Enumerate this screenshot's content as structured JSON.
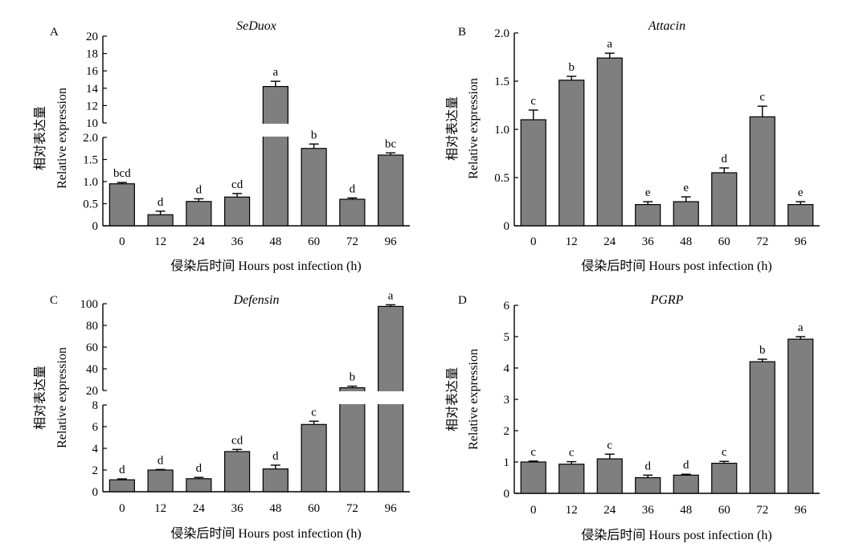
{
  "chart_data": [
    {
      "type": "bar",
      "panel": "A",
      "title": "SeDuox",
      "xlabel": "侵染后时间 Hours post infection (h)",
      "ylabel_cn": "相对表达量",
      "ylabel_en": "Relative expression",
      "categories": [
        "0",
        "12",
        "24",
        "36",
        "48",
        "60",
        "72",
        "96"
      ],
      "values": [
        0.95,
        0.25,
        0.55,
        0.65,
        14.2,
        1.75,
        0.6,
        1.6
      ],
      "errors": [
        0.03,
        0.08,
        0.06,
        0.08,
        0.6,
        0.1,
        0.03,
        0.05
      ],
      "significance": [
        "bcd",
        "d",
        "d",
        "cd",
        "a",
        "b",
        "d",
        "bc"
      ],
      "axis_break": {
        "lower_ylim": [
          0,
          2.0
        ],
        "upper_ylim": [
          10,
          20
        ],
        "lower_ticks": [
          "0",
          "0.5",
          "1.0",
          "1.5",
          "2.0"
        ],
        "upper_ticks": [
          "10",
          "12",
          "14",
          "16",
          "18",
          "20"
        ]
      }
    },
    {
      "type": "bar",
      "panel": "B",
      "title": "Attacin",
      "xlabel": "侵染后时间 Hours post infection (h)",
      "ylabel_cn": "相对表达量",
      "ylabel_en": "Relative expression",
      "categories": [
        "0",
        "12",
        "24",
        "36",
        "48",
        "60",
        "72",
        "96"
      ],
      "values": [
        1.1,
        1.51,
        1.74,
        0.22,
        0.25,
        0.55,
        1.13,
        0.22
      ],
      "errors": [
        0.1,
        0.04,
        0.05,
        0.03,
        0.05,
        0.05,
        0.11,
        0.03
      ],
      "significance": [
        "c",
        "b",
        "a",
        "e",
        "e",
        "d",
        "c",
        "e"
      ],
      "ylim": [
        0,
        2.0
      ],
      "yticks": [
        "0",
        "0.5",
        "1.0",
        "1.5",
        "2.0"
      ]
    },
    {
      "type": "bar",
      "panel": "C",
      "title": "Defensin",
      "xlabel": "侵染后时间 Hours post infection (h)",
      "ylabel_cn": "相对表达量",
      "ylabel_en": "Relative expression",
      "categories": [
        "0",
        "12",
        "24",
        "36",
        "48",
        "60",
        "72",
        "96"
      ],
      "values": [
        1.1,
        2.0,
        1.2,
        3.7,
        2.1,
        6.2,
        22.5,
        97.5
      ],
      "errors": [
        0.08,
        0.05,
        0.12,
        0.2,
        0.35,
        0.3,
        1.5,
        1.5
      ],
      "significance": [
        "d",
        "d",
        "d",
        "cd",
        "d",
        "c",
        "b",
        "a"
      ],
      "axis_break": {
        "lower_ylim": [
          0,
          8
        ],
        "upper_ylim": [
          20,
          100
        ],
        "lower_ticks": [
          "0",
          "2",
          "4",
          "6",
          "8"
        ],
        "upper_ticks": [
          "20",
          "40",
          "60",
          "80",
          "100"
        ]
      }
    },
    {
      "type": "bar",
      "panel": "D",
      "title": "PGRP",
      "xlabel": "侵染后时间 Hours post infection (h)",
      "ylabel_cn": "相对表达量",
      "ylabel_en": "Relative expression",
      "categories": [
        "0",
        "12",
        "24",
        "36",
        "48",
        "60",
        "72",
        "96"
      ],
      "values": [
        1.0,
        0.93,
        1.1,
        0.5,
        0.58,
        0.96,
        4.2,
        4.92
      ],
      "errors": [
        0.03,
        0.08,
        0.15,
        0.08,
        0.03,
        0.06,
        0.08,
        0.08
      ],
      "significance": [
        "c",
        "c",
        "c",
        "d",
        "d",
        "c",
        "b",
        "a"
      ],
      "ylim": [
        0,
        6
      ],
      "yticks": [
        "0",
        "1",
        "2",
        "3",
        "4",
        "5",
        "6"
      ]
    }
  ],
  "colors": {
    "bar_fill": "#7f7f7f",
    "bar_stroke": "#000000",
    "axis": "#000000"
  }
}
